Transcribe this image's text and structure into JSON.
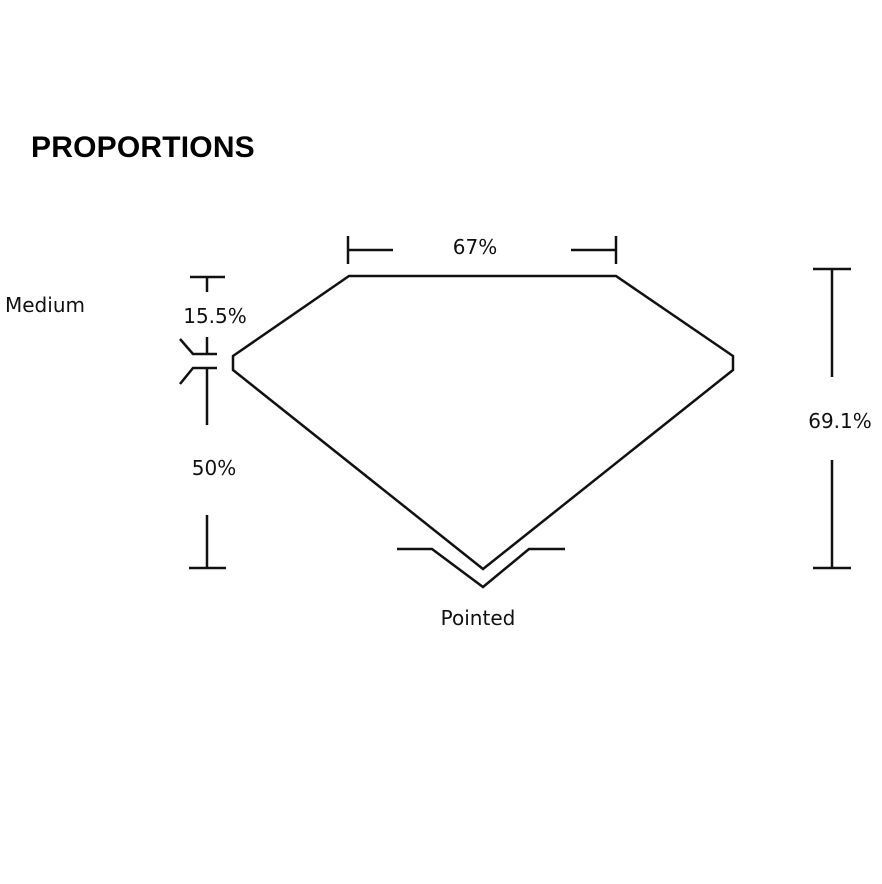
{
  "title": "PROPORTIONS",
  "labels": {
    "table": "67%",
    "girdle": "Medium",
    "crown": "15.5%",
    "pavilion": "50%",
    "depth": "69.1%",
    "culet": "Pointed"
  },
  "colors": {
    "line": "#111111",
    "background": "#ffffff"
  }
}
